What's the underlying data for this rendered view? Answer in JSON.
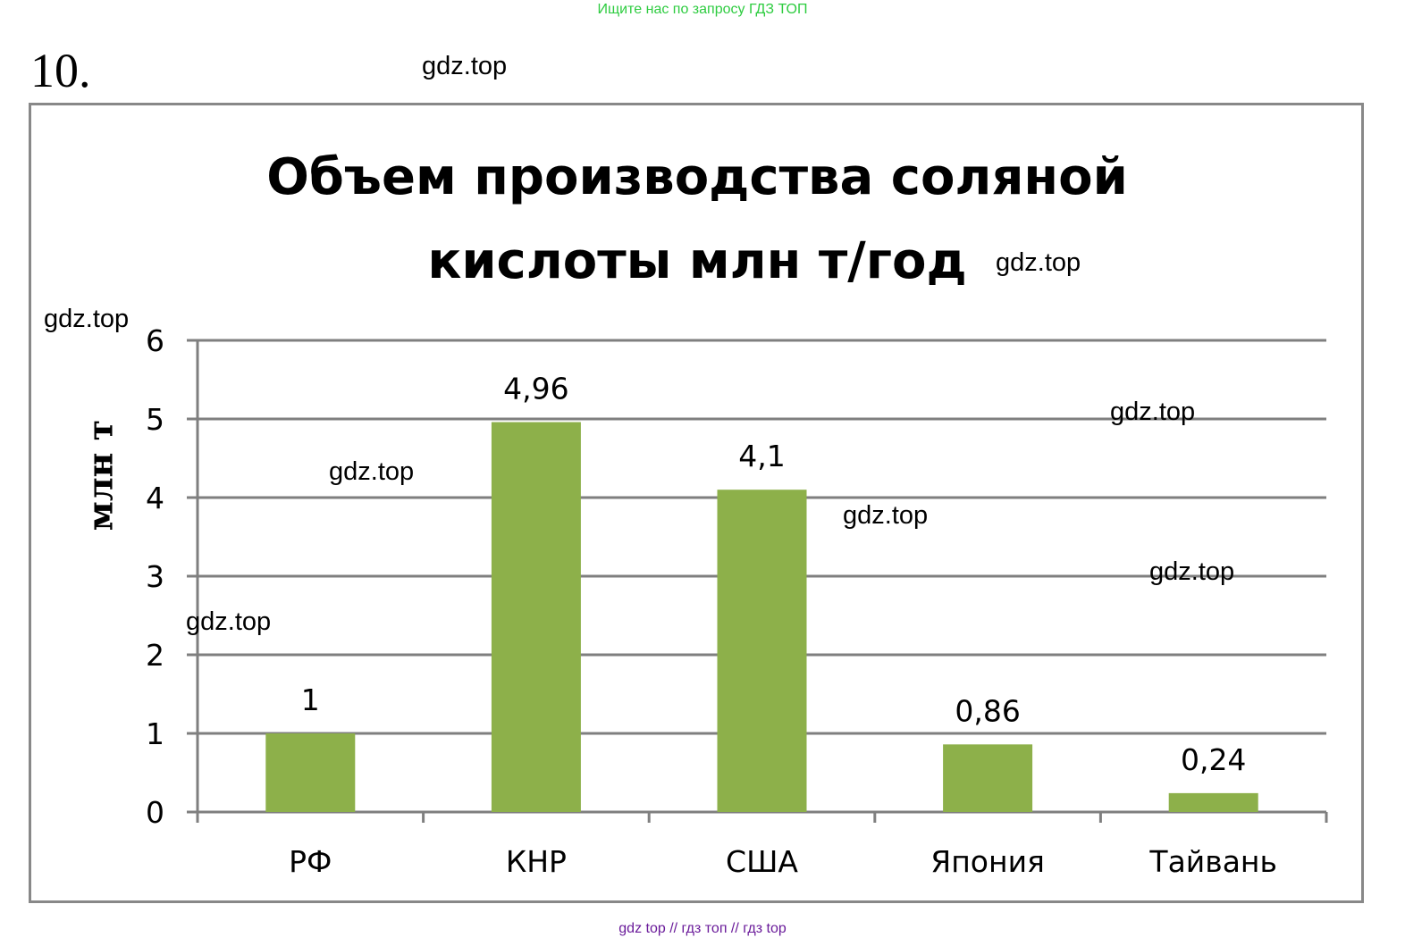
{
  "header": {
    "banner": "Ищите нас по запросу ГДЗ ТОП",
    "task_number": "10."
  },
  "watermarks": [
    "gdz.top",
    "gdz.top",
    "gdz.top",
    "gdz.top",
    "gdz.top",
    "gdz.top",
    "gdz.top",
    "gdz.top"
  ],
  "footer": {
    "text": "gdz top  //  гдз топ  //  гдз top"
  },
  "chart_data": {
    "type": "bar",
    "title_line1": "Объем производства соляной",
    "title_line2": "кислоты млн т/год",
    "xlabel": "",
    "ylabel": "млн т",
    "categories": [
      "РФ",
      "КНР",
      "США",
      "Япония",
      "Тайвань"
    ],
    "values": [
      1,
      4.96,
      4.1,
      0.86,
      0.24
    ],
    "value_labels": [
      "1",
      "4,96",
      "4,1",
      "0,86",
      "0,24"
    ],
    "ylim": [
      0,
      6
    ],
    "yticks": [
      0,
      1,
      2,
      3,
      4,
      5,
      6
    ],
    "grid": true,
    "legend": "none",
    "colors": {
      "bar": "#8db04a",
      "grid": "#7f7f7f",
      "axis": "#7f7f7f"
    }
  }
}
